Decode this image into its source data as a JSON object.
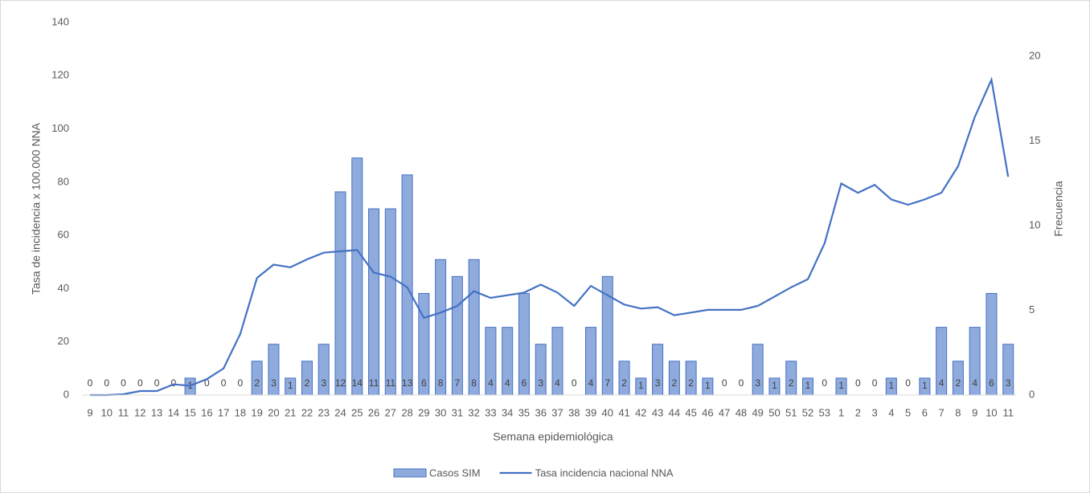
{
  "chart_data": {
    "type": "combo",
    "x_label": "Semana epidemiológica",
    "y_label": "Tasa de incidencia x 100.000 NNA",
    "y2_label": "Frecuencia",
    "categories": [
      "9",
      "10",
      "11",
      "12",
      "13",
      "14",
      "15",
      "16",
      "17",
      "18",
      "19",
      "20",
      "21",
      "22",
      "23",
      "24",
      "25",
      "26",
      "27",
      "28",
      "29",
      "30",
      "31",
      "32",
      "33",
      "34",
      "35",
      "36",
      "37",
      "38",
      "39",
      "40",
      "41",
      "42",
      "43",
      "44",
      "45",
      "46",
      "47",
      "48",
      "49",
      "50",
      "51",
      "52",
      "53",
      "1",
      "2",
      "3",
      "4",
      "5",
      "6",
      "7",
      "8",
      "9",
      "10",
      "11"
    ],
    "ylim": [
      0,
      140
    ],
    "yticks": [
      0,
      20,
      40,
      60,
      80,
      100,
      120,
      140
    ],
    "y2lim": [
      0,
      22
    ],
    "y2ticks": [
      0,
      5,
      10,
      15,
      20
    ],
    "legend": "bottom",
    "series": [
      {
        "name": "Casos SIM",
        "type": "bar",
        "axis": "y2",
        "color": "#8faadc",
        "edge_color": "#4472c4",
        "values": [
          0,
          0,
          0,
          0,
          0,
          0,
          1,
          0,
          0,
          0,
          2,
          3,
          1,
          2,
          3,
          12,
          14,
          11,
          11,
          13,
          6,
          8,
          7,
          8,
          4,
          4,
          6,
          3,
          4,
          0,
          4,
          7,
          2,
          1,
          3,
          2,
          2,
          1,
          0,
          0,
          3,
          1,
          2,
          1,
          0,
          1,
          0,
          0,
          1,
          0,
          1,
          4,
          2,
          4,
          6,
          3
        ]
      },
      {
        "name": "Tasa incidencia nacional NNA",
        "type": "line",
        "color": "#4472c4",
        "values": [
          0,
          0,
          0.3,
          1.5,
          1.5,
          4,
          3.5,
          6,
          10,
          23,
          44,
          49,
          48,
          51,
          53.5,
          54,
          54.5,
          46,
          44.5,
          40.5,
          29,
          31,
          33.5,
          39,
          36.5,
          37.5,
          38.5,
          41.5,
          38.5,
          33.5,
          41,
          37.5,
          34,
          32.5,
          33,
          30,
          31,
          32,
          32,
          32,
          33.5,
          37,
          40.5,
          43.5,
          57,
          79.5,
          76,
          79,
          73.5,
          71.5,
          73.5,
          76,
          86,
          104.5,
          118.5,
          82
        ]
      }
    ]
  }
}
